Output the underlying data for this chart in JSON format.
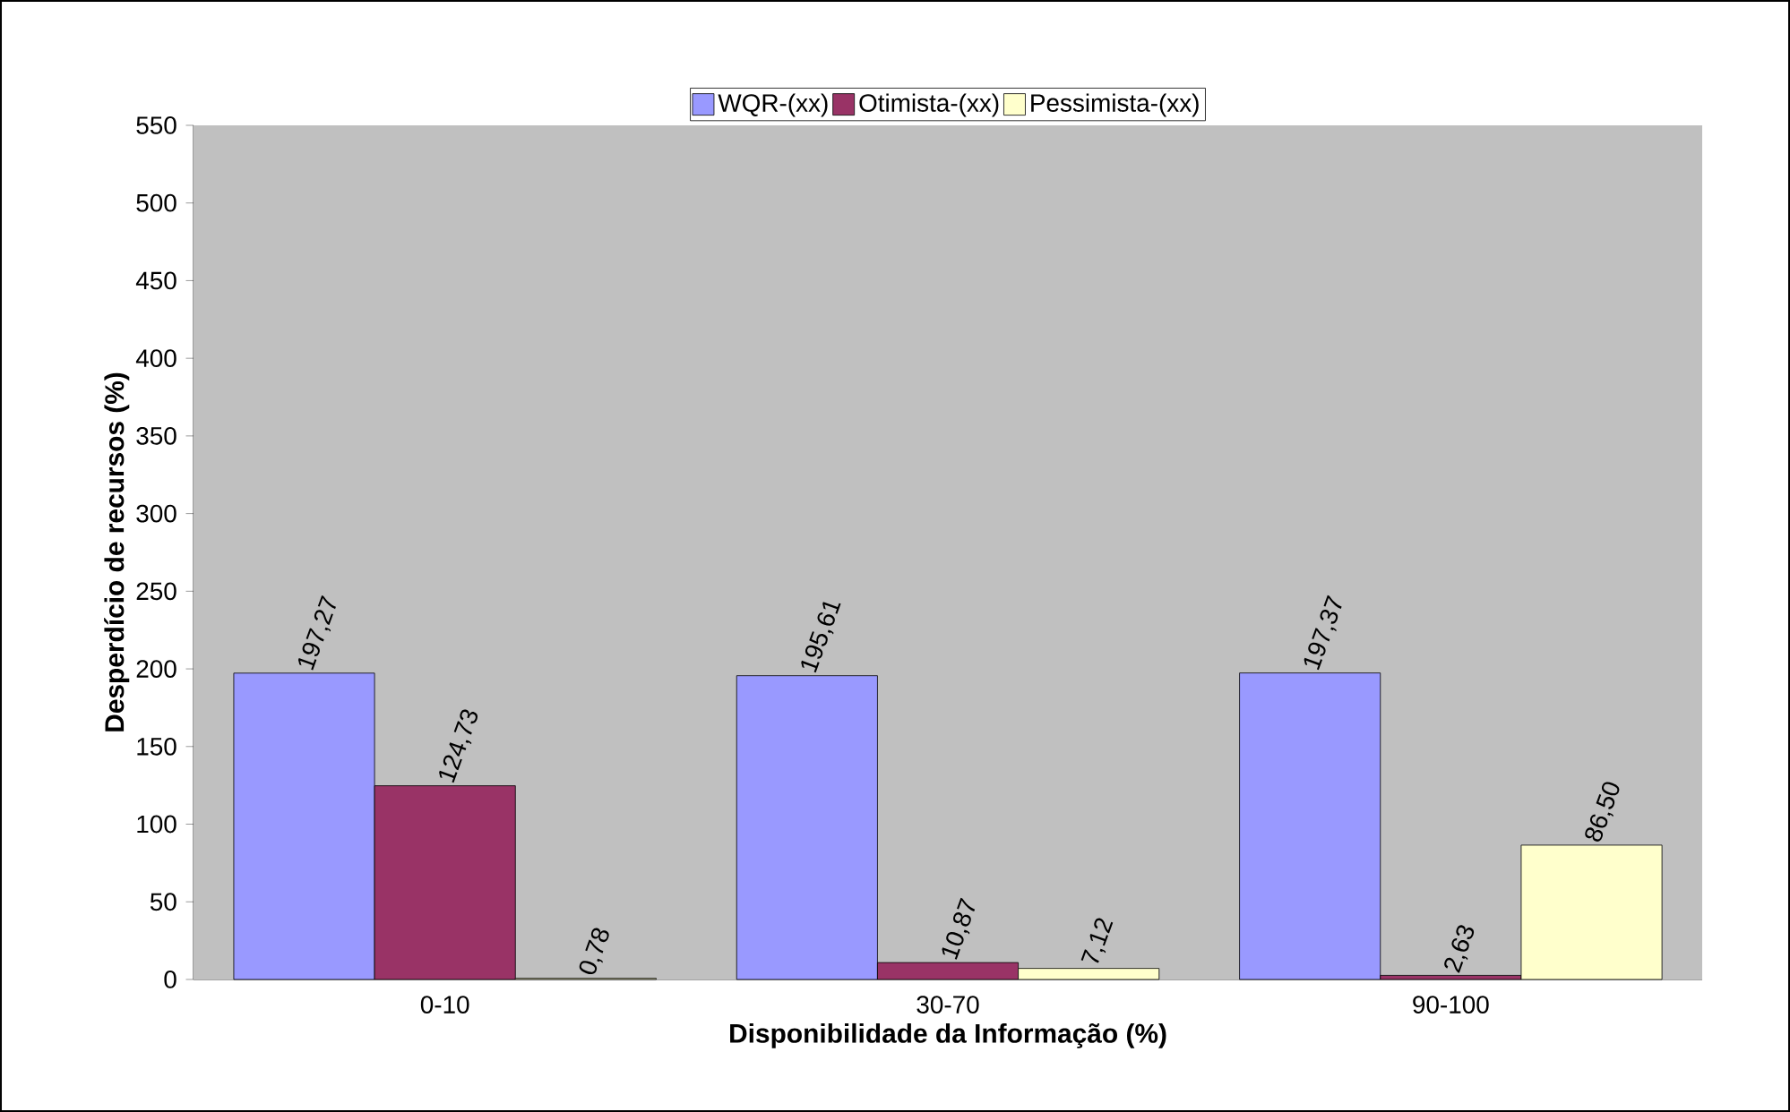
{
  "chart_data": {
    "type": "bar",
    "xlabel": "Disponibilidade da Informação (%)",
    "ylabel": "Desperdício de recursos (%)",
    "categories": [
      "0-10",
      "30-70",
      "90-100"
    ],
    "series": [
      {
        "name": "WQR-(xx)",
        "color": "#9999ff",
        "values": [
          197.27,
          195.61,
          197.37
        ],
        "value_labels": [
          "197,27",
          "195,61",
          "197,37"
        ]
      },
      {
        "name": "Otimista-(xx)",
        "color": "#993366",
        "values": [
          124.73,
          10.87,
          2.63
        ],
        "value_labels": [
          "124,73",
          "10,87",
          "2,63"
        ]
      },
      {
        "name": "Pessimista-(xx)",
        "color": "#ffffcc",
        "values": [
          0.78,
          7.12,
          86.5
        ],
        "value_labels": [
          "0,78",
          "7,12",
          "86,50"
        ]
      }
    ],
    "ylim": [
      0,
      550
    ],
    "yticks": [
      0,
      50,
      100,
      150,
      200,
      250,
      300,
      350,
      400,
      450,
      500,
      550
    ],
    "grid": false,
    "legend": "top"
  }
}
